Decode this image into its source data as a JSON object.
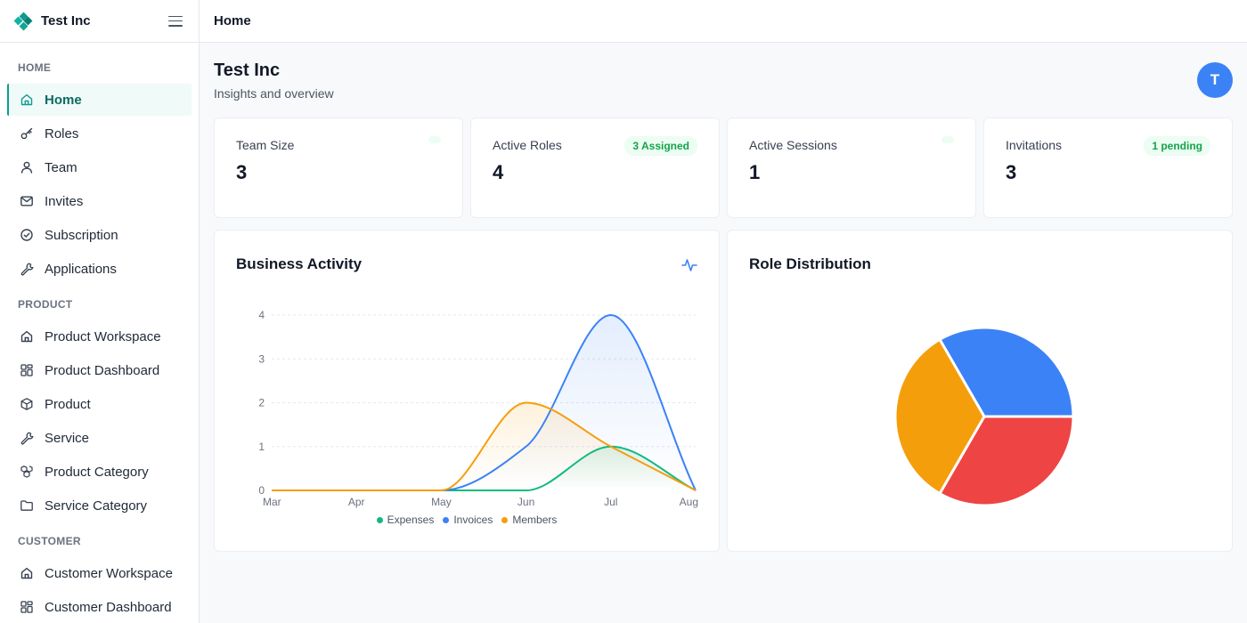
{
  "brand": {
    "name": "Test Inc"
  },
  "topbar": {
    "title": "Home"
  },
  "sidebar": {
    "sections": [
      {
        "label": "HOME",
        "items": [
          {
            "label": "Home",
            "icon": "home-icon",
            "active": true
          },
          {
            "label": "Roles",
            "icon": "key-icon"
          },
          {
            "label": "Team",
            "icon": "user-icon"
          },
          {
            "label": "Invites",
            "icon": "mail-icon"
          },
          {
            "label": "Subscription",
            "icon": "check-circle-icon"
          },
          {
            "label": "Applications",
            "icon": "wrench-icon"
          }
        ]
      },
      {
        "label": "PRODUCT",
        "items": [
          {
            "label": "Product Workspace",
            "icon": "home-icon"
          },
          {
            "label": "Product Dashboard",
            "icon": "grid-icon"
          },
          {
            "label": "Product",
            "icon": "box-icon"
          },
          {
            "label": "Service",
            "icon": "wrench-icon"
          },
          {
            "label": "Product Category",
            "icon": "boxes-icon"
          },
          {
            "label": "Service Category",
            "icon": "folder-icon"
          }
        ]
      },
      {
        "label": "CUSTOMER",
        "items": [
          {
            "label": "Customer Workspace",
            "icon": "home-icon"
          },
          {
            "label": "Customer Dashboard",
            "icon": "grid-icon"
          }
        ]
      }
    ]
  },
  "page": {
    "title": "Test Inc",
    "subtitle": "Insights and overview",
    "avatar_initial": "T"
  },
  "stats": [
    {
      "label": "Team Size",
      "value": "3",
      "badge": ""
    },
    {
      "label": "Active Roles",
      "value": "4",
      "badge": "3 Assigned"
    },
    {
      "label": "Active Sessions",
      "value": "1",
      "badge": ""
    },
    {
      "label": "Invitations",
      "value": "3",
      "badge": "1 pending"
    }
  ],
  "charts": {
    "activity_title": "Business Activity",
    "roles_title": "Role Distribution"
  },
  "colors": {
    "accent": "#0f9b8e",
    "expenses": "#10b981",
    "invoices": "#3b82f6",
    "members": "#f59e0b",
    "red": "#ef4444"
  },
  "chart_data": [
    {
      "type": "line",
      "title": "Business Activity",
      "categories": [
        "Mar",
        "Apr",
        "May",
        "Jun",
        "Jul",
        "Aug"
      ],
      "ylim": [
        0,
        4
      ],
      "yticks": [
        0,
        1,
        2,
        3,
        4
      ],
      "grid": true,
      "legend": "bottom",
      "series": [
        {
          "name": "Expenses",
          "color": "#10b981",
          "values": [
            0,
            0,
            0,
            0,
            1,
            0
          ]
        },
        {
          "name": "Invoices",
          "color": "#3b82f6",
          "values": [
            0,
            0,
            0,
            1,
            4,
            0
          ]
        },
        {
          "name": "Members",
          "color": "#f59e0b",
          "values": [
            0,
            0,
            0,
            2,
            1,
            0
          ]
        }
      ]
    },
    {
      "type": "pie",
      "title": "Role Distribution",
      "slices": [
        {
          "value": 1,
          "color": "#3b82f6"
        },
        {
          "value": 1,
          "color": "#ef4444"
        },
        {
          "value": 1,
          "color": "#f59e0b"
        }
      ]
    }
  ]
}
